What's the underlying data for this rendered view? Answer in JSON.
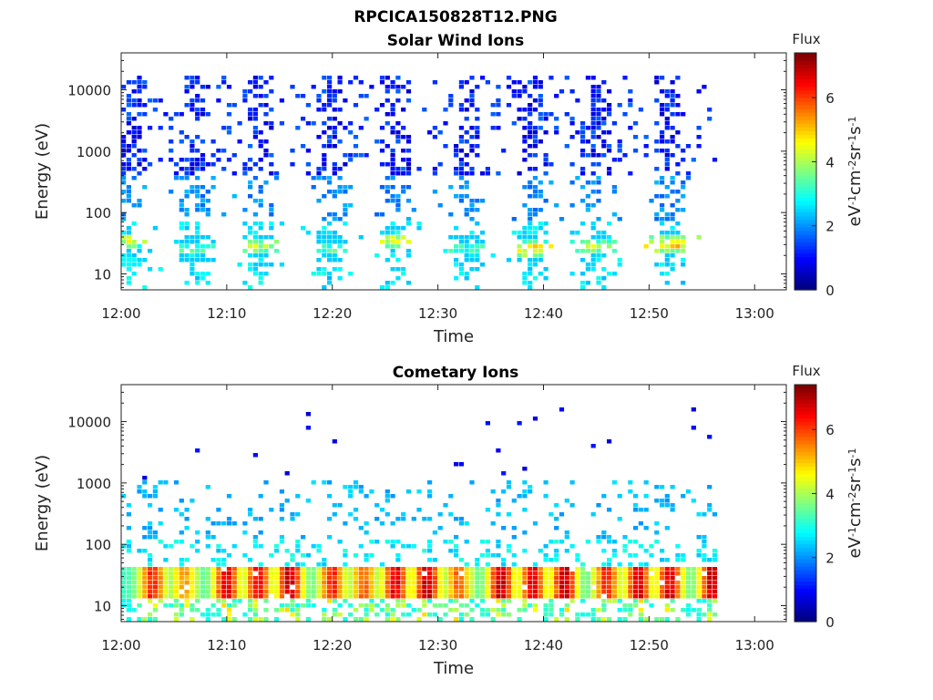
{
  "figure_title": "RPCICA150828T12.PNG",
  "chart_data": [
    {
      "type": "heatmap",
      "title": "Solar Wind Ions",
      "xlabel": "Time",
      "ylabel": "Energy (eV)",
      "x_ticks": [
        "12:00",
        "12:10",
        "12:20",
        "12:30",
        "12:40",
        "12:50",
        "13:00"
      ],
      "xlim": [
        "12:00",
        "13:03"
      ],
      "data_end": "12:56:30",
      "y_scale": "log",
      "y_ticks": [
        10,
        100,
        1000,
        10000
      ],
      "y_tick_labels": [
        "10",
        "100",
        "1000",
        "10000"
      ],
      "ylim": [
        5.5,
        40000
      ],
      "colorbar": {
        "title": "Flux",
        "label": "eV-1cm-2sr-1s-1",
        "label_parts": [
          "eV",
          "-1",
          "cm",
          "-2",
          "sr",
          "-1",
          "s",
          "-1"
        ],
        "range": [
          0,
          7.4
        ],
        "ticks": [
          0,
          2,
          4,
          6
        ],
        "colormap": "jet"
      },
      "bursts": [
        {
          "center": "12:01",
          "peak_energy": 35,
          "peak_flux": 4.8
        },
        {
          "center": "12:07",
          "peak_energy": 25,
          "peak_flux": 3.8
        },
        {
          "center": "12:13",
          "peak_energy": 28,
          "peak_flux": 4.6
        },
        {
          "center": "12:20",
          "peak_energy": 25,
          "peak_flux": 3.8
        },
        {
          "center": "12:26",
          "peak_energy": 35,
          "peak_flux": 4.8
        },
        {
          "center": "12:33",
          "peak_energy": 25,
          "peak_flux": 3.6
        },
        {
          "center": "12:39",
          "peak_energy": 25,
          "peak_flux": 5.4
        },
        {
          "center": "12:45",
          "peak_energy": 28,
          "peak_flux": 4.6
        },
        {
          "center": "12:52",
          "peak_energy": 30,
          "peak_flux": 5.6
        }
      ]
    },
    {
      "type": "heatmap",
      "title": "Cometary Ions",
      "xlabel": "Time",
      "ylabel": "Energy (eV)",
      "x_ticks": [
        "12:00",
        "12:10",
        "12:20",
        "12:30",
        "12:40",
        "12:50",
        "13:00"
      ],
      "xlim": [
        "12:00",
        "13:03"
      ],
      "data_end": "12:56:30",
      "y_scale": "log",
      "y_ticks": [
        10,
        100,
        1000,
        10000
      ],
      "y_tick_labels": [
        "10",
        "100",
        "1000",
        "10000"
      ],
      "ylim": [
        5.5,
        40000
      ],
      "colorbar": {
        "title": "Flux",
        "label": "eV-1cm-2sr-1s-1",
        "label_parts": [
          "eV",
          "-1",
          "cm",
          "-2",
          "sr",
          "-1",
          "s",
          "-1"
        ],
        "range": [
          0,
          7.4
        ],
        "ticks": [
          0,
          2,
          4,
          6
        ],
        "colormap": "jet"
      },
      "band_energy_range": [
        12,
        40
      ],
      "bursts": [
        {
          "center": "12:03",
          "peak_flux": 6.5
        },
        {
          "center": "12:06",
          "peak_flux": 5.5
        },
        {
          "center": "12:10",
          "peak_flux": 7.0
        },
        {
          "center": "12:13",
          "peak_flux": 6.8
        },
        {
          "center": "12:16",
          "peak_flux": 7.2
        },
        {
          "center": "12:20",
          "peak_flux": 6.5
        },
        {
          "center": "12:23",
          "peak_flux": 6.0
        },
        {
          "center": "12:26",
          "peak_flux": 7.0
        },
        {
          "center": "12:29",
          "peak_flux": 7.2
        },
        {
          "center": "12:32",
          "peak_flux": 6.0
        },
        {
          "center": "12:36",
          "peak_flux": 7.2
        },
        {
          "center": "12:39",
          "peak_flux": 7.0
        },
        {
          "center": "12:42",
          "peak_flux": 7.2
        },
        {
          "center": "12:46",
          "peak_flux": 6.5
        },
        {
          "center": "12:49",
          "peak_flux": 7.0
        },
        {
          "center": "12:52",
          "peak_flux": 7.0
        },
        {
          "center": "12:56",
          "peak_flux": 7.2
        }
      ]
    }
  ]
}
